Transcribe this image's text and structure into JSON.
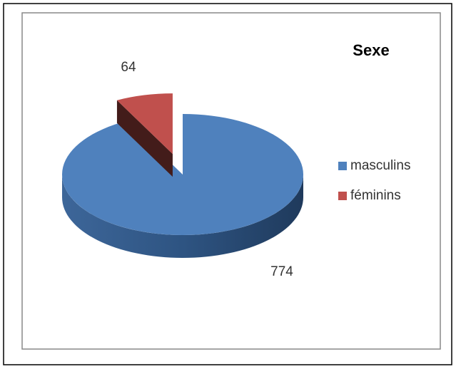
{
  "chart_data": {
    "type": "pie",
    "title": "Sexe",
    "categories": [
      "masculins",
      "féminins"
    ],
    "values": [
      774,
      64
    ],
    "colors": [
      "#4f81bd",
      "#c0504d"
    ],
    "legend": "right"
  }
}
